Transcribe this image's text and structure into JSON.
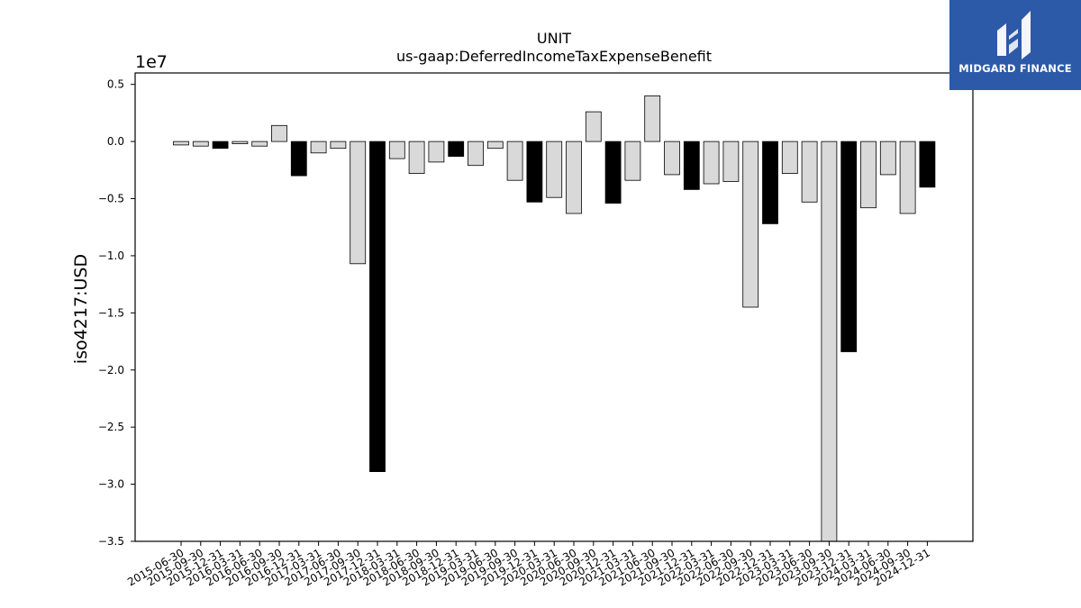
{
  "brand": {
    "name": "MIDGARD FINANCE",
    "accent": "#2c5aa8",
    "logo_icon": "midgard-m-logo-icon"
  },
  "chart_data": {
    "type": "bar",
    "title": "UNIT",
    "subtitle": "us-gaap:DeferredIncomeTaxExpenseBenefit",
    "xlabel": "",
    "ylabel": "iso4217:USD",
    "y_scale_label": "1e7",
    "y_multiplier": 10000000,
    "ylim": [
      -3.5,
      0.6
    ],
    "yticks": [
      0.5,
      0.0,
      -0.5,
      -1.0,
      -1.5,
      -2.0,
      -2.5,
      -3.0,
      -3.5
    ],
    "ytick_labels": [
      "0.5",
      "0.0",
      "−0.5",
      "−1.0",
      "−1.5",
      "−2.0",
      "−2.5",
      "−3.0",
      "−3.5"
    ],
    "grid": false,
    "colors": {
      "quarter": "#d9d9d9",
      "year_end": "#000000",
      "edge": "#000000"
    },
    "categories": [
      "2015-06-30",
      "2015-09-30",
      "2015-12-31",
      "2016-03-31",
      "2016-06-30",
      "2016-09-30",
      "2016-12-31",
      "2017-03-31",
      "2017-06-30",
      "2017-09-30",
      "2017-12-31",
      "2018-03-31",
      "2018-06-30",
      "2018-09-30",
      "2018-12-31",
      "2019-03-31",
      "2019-06-30",
      "2019-09-30",
      "2019-12-31",
      "2020-03-31",
      "2020-06-30",
      "2020-09-30",
      "2020-12-31",
      "2021-03-31",
      "2021-06-30",
      "2021-09-30",
      "2021-12-31",
      "2022-03-31",
      "2022-06-30",
      "2022-09-30",
      "2022-12-31",
      "2023-03-31",
      "2023-06-30",
      "2023-09-30",
      "2023-12-31",
      "2024-03-31",
      "2024-06-30",
      "2024-09-30",
      "2024-12-31"
    ],
    "values": [
      -0.03,
      -0.04,
      -0.06,
      -0.02,
      -0.04,
      0.14,
      -0.3,
      -0.1,
      -0.06,
      -1.07,
      -2.89,
      -0.15,
      -0.28,
      -0.18,
      -0.13,
      -0.21,
      -0.06,
      -0.34,
      -0.53,
      -0.49,
      -0.63,
      0.26,
      -0.54,
      -0.34,
      0.4,
      -0.29,
      -0.42,
      -0.37,
      -0.35,
      -1.45,
      -0.72,
      -0.28,
      -0.53,
      -3.55,
      -1.84,
      -0.58,
      -0.29,
      -0.63,
      -0.4
    ]
  }
}
